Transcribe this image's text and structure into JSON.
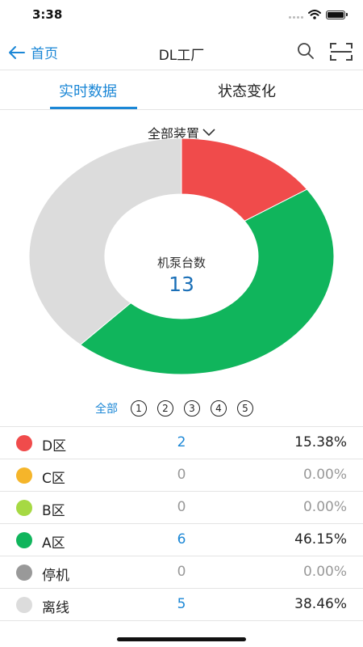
{
  "status_bar": {
    "time": "3:38"
  },
  "nav": {
    "back_label": "首页",
    "title": "DL工厂"
  },
  "tabs": [
    {
      "label": "实时数据",
      "active": true
    },
    {
      "label": "状态变化",
      "active": false
    }
  ],
  "device_filter": {
    "selected": "全部装置"
  },
  "chart_data": {
    "type": "pie",
    "donut": true,
    "center_label": "机泵台数",
    "center_value": "13",
    "slices": [
      {
        "label": "D区",
        "value": 2,
        "color": "#f04b4b"
      },
      {
        "label": "C区",
        "value": 0,
        "color": "#f5b52a"
      },
      {
        "label": "B区",
        "value": 0,
        "color": "#a6d943"
      },
      {
        "label": "A区",
        "value": 6,
        "color": "#10b55c"
      },
      {
        "label": "停机",
        "value": 0,
        "color": "#999999"
      },
      {
        "label": "离线",
        "value": 5,
        "color": "#dcdcdc"
      }
    ]
  },
  "unit_filter": {
    "all_label": "全部",
    "options": [
      "1",
      "2",
      "3",
      "4",
      "5"
    ]
  },
  "zones": [
    {
      "name": "D区",
      "count": "2",
      "percent": "15.38%",
      "color": "#f04b4b"
    },
    {
      "name": "C区",
      "count": "0",
      "percent": "0.00%",
      "color": "#f5b52a"
    },
    {
      "name": "B区",
      "count": "0",
      "percent": "0.00%",
      "color": "#a6d943"
    },
    {
      "name": "A区",
      "count": "6",
      "percent": "46.15%",
      "color": "#10b55c"
    },
    {
      "name": "停机",
      "count": "0",
      "percent": "0.00%",
      "color": "#999999"
    },
    {
      "name": "离线",
      "count": "5",
      "percent": "38.46%",
      "color": "#dcdcdc"
    }
  ]
}
